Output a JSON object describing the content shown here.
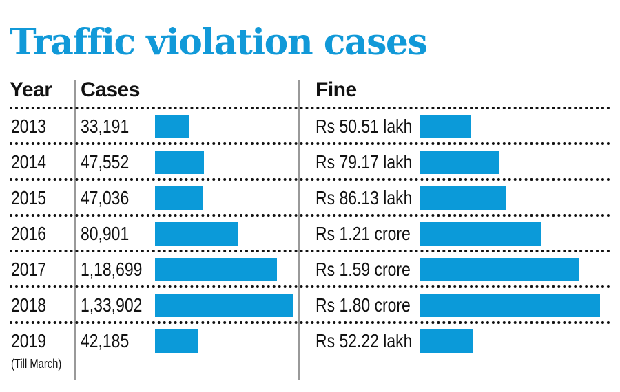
{
  "title": "Traffic violation cases",
  "headers": {
    "year": "Year",
    "cases": "Cases",
    "fine": "Fine"
  },
  "bar_color": "#0b9ad9",
  "rows": [
    {
      "year": "2013",
      "cases": "33,191",
      "fine": "Rs 50.51 lakh"
    },
    {
      "year": "2014",
      "cases": "47,552",
      "fine": "Rs 79.17 lakh"
    },
    {
      "year": "2015",
      "cases": "47,036",
      "fine": "Rs 86.13 lakh"
    },
    {
      "year": "2016",
      "cases": "80,901",
      "fine": "Rs 1.21 crore"
    },
    {
      "year": "2017",
      "cases": "1,18,699",
      "fine": "Rs 1.59 crore"
    },
    {
      "year": "2018",
      "cases": "1,33,902",
      "fine": "Rs 1.80 crore"
    },
    {
      "year": "2019",
      "cases": "42,185",
      "fine": "Rs 52.22 lakh",
      "note": "(Till March)"
    }
  ],
  "chart_data": {
    "type": "bar",
    "title": "Traffic violation cases",
    "categories": [
      "2013",
      "2014",
      "2015",
      "2016",
      "2017",
      "2018",
      "2019 (Till March)"
    ],
    "series": [
      {
        "name": "Cases",
        "values": [
          33191,
          47552,
          47036,
          80901,
          118699,
          133902,
          42185
        ]
      },
      {
        "name": "Fine (Rs lakh)",
        "values": [
          50.51,
          79.17,
          86.13,
          121,
          159,
          180,
          52.22
        ]
      }
    ],
    "orientation": "horizontal"
  }
}
